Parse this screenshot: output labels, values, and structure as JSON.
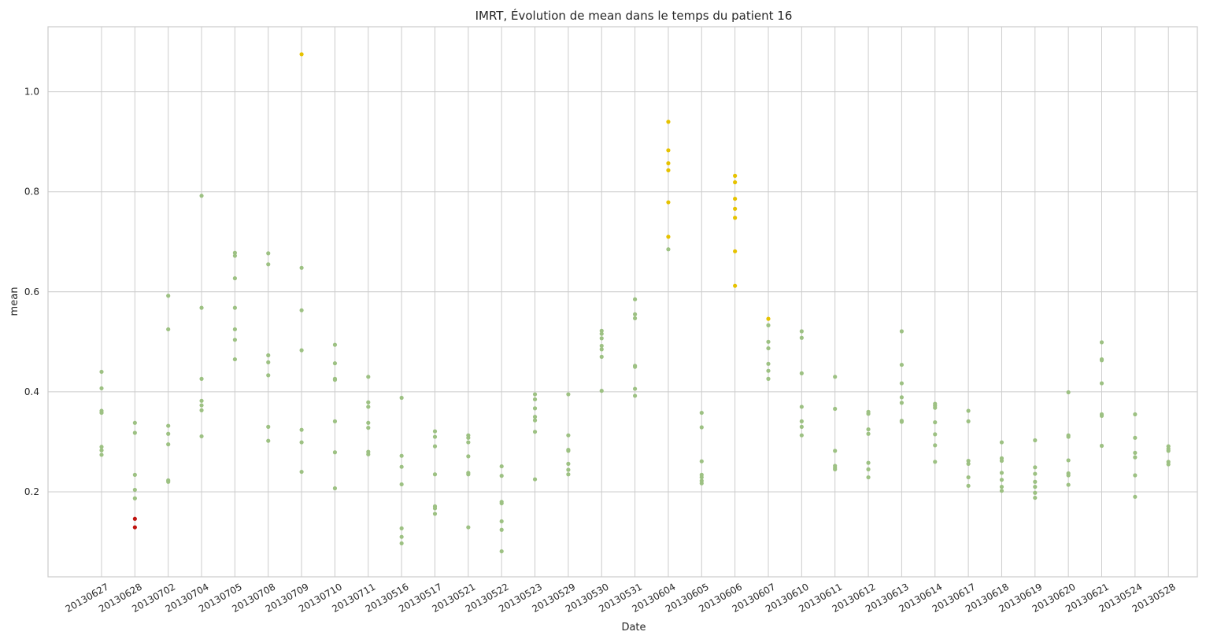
{
  "chart_data": {
    "type": "scatter",
    "title": "IMRT, Évolution de mean dans le temps du patient 16",
    "xlabel": "Date",
    "ylabel": "mean",
    "ylim": [
      0.03,
      1.13
    ],
    "yticks": [
      "0.2",
      "0.4",
      "0.6",
      "0.8",
      "1.0"
    ],
    "grid": true,
    "colors": {
      "normal": "#9dc183",
      "warning": "#e6c200",
      "alert": "#c0140f"
    },
    "categories": [
      "20130627",
      "20130628",
      "20130702",
      "20130704",
      "20130705",
      "20130708",
      "20130709",
      "20130710",
      "20130711",
      "20130516",
      "20130517",
      "20130521",
      "20130522",
      "20130523",
      "20130529",
      "20130530",
      "20130531",
      "20130604",
      "20130605",
      "20130606",
      "20130607",
      "20130610",
      "20130611",
      "20130612",
      "20130613",
      "20130614",
      "20130617",
      "20130618",
      "20130619",
      "20130620",
      "20130621",
      "20130524",
      "20130528"
    ],
    "series": [
      {
        "status": "normal",
        "points": [
          [
            "20130627",
            [
              0.44,
              0.407,
              0.362,
              0.358,
              0.29,
              0.283,
              0.274
            ]
          ],
          [
            "20130628",
            [
              0.338,
              0.318,
              0.234,
              0.204,
              0.187
            ]
          ],
          [
            "20130702",
            [
              0.592,
              0.525,
              0.332,
              0.316,
              0.295,
              0.223,
              0.22
            ]
          ],
          [
            "20130704",
            [
              0.792,
              0.568,
              0.426,
              0.382,
              0.373,
              0.363,
              0.311
            ]
          ],
          [
            "20130705",
            [
              0.678,
              0.672,
              0.627,
              0.568,
              0.525,
              0.504,
              0.465
            ]
          ],
          [
            "20130708",
            [
              0.677,
              0.655,
              0.473,
              0.459,
              0.433,
              0.33,
              0.302
            ]
          ],
          [
            "20130709",
            [
              0.648,
              0.563,
              0.483,
              0.324,
              0.299,
              0.24
            ]
          ],
          [
            "20130710",
            [
              0.494,
              0.457,
              0.426,
              0.424,
              0.341,
              0.279,
              0.207
            ]
          ],
          [
            "20130711",
            [
              0.43,
              0.379,
              0.37,
              0.338,
              0.328,
              0.28,
              0.275
            ]
          ],
          [
            "20130516",
            [
              0.388,
              0.272,
              0.25,
              0.215,
              0.127,
              0.11,
              0.097
            ]
          ],
          [
            "20130517",
            [
              0.321,
              0.31,
              0.291,
              0.235,
              0.171,
              0.167,
              0.156
            ]
          ],
          [
            "20130521",
            [
              0.313,
              0.308,
              0.299,
              0.271,
              0.238,
              0.235,
              0.129
            ]
          ],
          [
            "20130522",
            [
              0.251,
              0.232,
              0.18,
              0.177,
              0.141,
              0.124,
              0.081
            ]
          ],
          [
            "20130523",
            [
              0.395,
              0.385,
              0.367,
              0.35,
              0.343,
              0.32,
              0.225
            ]
          ],
          [
            "20130529",
            [
              0.395,
              0.313,
              0.284,
              0.282,
              0.256,
              0.244,
              0.235
            ]
          ],
          [
            "20130530",
            [
              0.522,
              0.516,
              0.507,
              0.492,
              0.485,
              0.47,
              0.402
            ]
          ],
          [
            "20130531",
            [
              0.585,
              0.555,
              0.547,
              0.452,
              0.45,
              0.406,
              0.392
            ]
          ],
          [
            "20130604",
            [
              0.685
            ]
          ],
          [
            "20130605",
            [
              0.358,
              0.329,
              0.261,
              0.234,
              0.229,
              0.222,
              0.217
            ]
          ],
          [
            "20130607",
            [
              0.533,
              0.5,
              0.487,
              0.456,
              0.442,
              0.426
            ]
          ],
          [
            "20130610",
            [
              0.521,
              0.508,
              0.437,
              0.37,
              0.341,
              0.33,
              0.313
            ]
          ],
          [
            "20130611",
            [
              0.43,
              0.366,
              0.282,
              0.252,
              0.248,
              0.245
            ]
          ],
          [
            "20130612",
            [
              0.36,
              0.356,
              0.325,
              0.316,
              0.258,
              0.245,
              0.229
            ]
          ],
          [
            "20130613",
            [
              0.521,
              0.454,
              0.417,
              0.389,
              0.378,
              0.342,
              0.34
            ]
          ],
          [
            "20130614",
            [
              0.376,
              0.372,
              0.368,
              0.339,
              0.315,
              0.293,
              0.26
            ]
          ],
          [
            "20130617",
            [
              0.362,
              0.341,
              0.262,
              0.256,
              0.229,
              0.212
            ]
          ],
          [
            "20130618",
            [
              0.299,
              0.267,
              0.262,
              0.238,
              0.224,
              0.21,
              0.202
            ]
          ],
          [
            "20130619",
            [
              0.303,
              0.249,
              0.236,
              0.22,
              0.21,
              0.198,
              0.188
            ]
          ],
          [
            "20130620",
            [
              0.399,
              0.313,
              0.31,
              0.263,
              0.237,
              0.233,
              0.214
            ]
          ],
          [
            "20130621",
            [
              0.499,
              0.465,
              0.463,
              0.417,
              0.355,
              0.352,
              0.292
            ]
          ],
          [
            "20130524",
            [
              0.355,
              0.308,
              0.278,
              0.269,
              0.233,
              0.19
            ]
          ],
          [
            "20130528",
            [
              0.291,
              0.286,
              0.282,
              0.26,
              0.255
            ]
          ]
        ]
      },
      {
        "status": "warning",
        "points": [
          [
            "20130709",
            [
              1.075
            ]
          ],
          [
            "20130604",
            [
              0.94,
              0.883,
              0.857,
              0.843,
              0.779,
              0.71
            ]
          ],
          [
            "20130606",
            [
              0.832,
              0.819,
              0.786,
              0.766,
              0.748,
              0.681,
              0.612
            ]
          ],
          [
            "20130607",
            [
              0.546
            ]
          ]
        ]
      },
      {
        "status": "alert",
        "points": [
          [
            "20130628",
            [
              0.146,
              0.129
            ]
          ]
        ]
      }
    ]
  }
}
